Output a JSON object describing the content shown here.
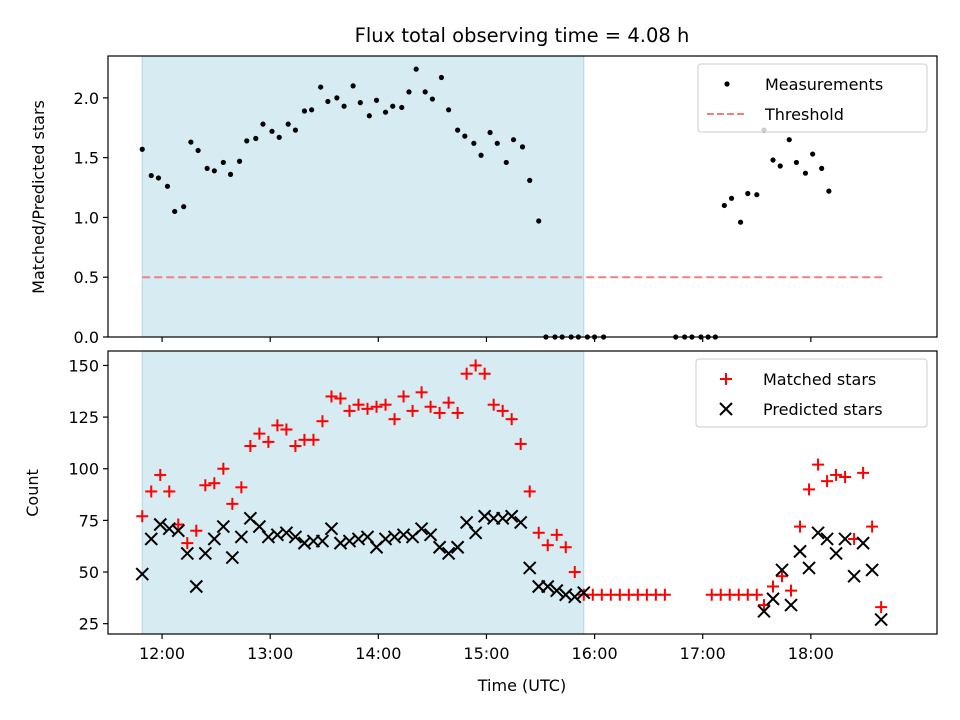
{
  "title": "Flux total observing time = 4.08 h",
  "colors": {
    "highlight": "#add8e6",
    "measurements": "#000000",
    "threshold": "#f08080",
    "matched": "#ff0000",
    "predicted": "#000000"
  },
  "chart_data": [
    {
      "type": "scatter",
      "panel": "top",
      "ylabel": "Matched/Predicted stars",
      "ylim": [
        0,
        2.35
      ],
      "y_ticks": [
        0.0,
        0.5,
        1.0,
        1.5,
        2.0
      ],
      "y_tick_labels": [
        "0.0",
        "0.5",
        "1.0",
        "1.5",
        "2.0"
      ],
      "xlim": [
        "11:30",
        "19:10"
      ],
      "x_tick_times": [
        "12:00",
        "13:00",
        "14:00",
        "15:00",
        "16:00",
        "17:00",
        "18:00"
      ],
      "highlight_span": [
        "11:49",
        "15:54"
      ],
      "legend_position": "top-right",
      "legend": [
        "Measurements",
        "Threshold"
      ],
      "threshold": {
        "name": "Threshold",
        "y": 0.5,
        "x_start": "11:49",
        "x_end": "18:40"
      },
      "series": [
        {
          "name": "Measurements",
          "marker": "dot",
          "points": [
            [
              "11:49",
              1.57
            ],
            [
              "11:54",
              1.35
            ],
            [
              "11:58",
              1.33
            ],
            [
              "12:03",
              1.26
            ],
            [
              "12:07",
              1.05
            ],
            [
              "12:12",
              1.09
            ],
            [
              "12:16",
              1.63
            ],
            [
              "12:20",
              1.56
            ],
            [
              "12:25",
              1.41
            ],
            [
              "12:29",
              1.39
            ],
            [
              "12:34",
              1.46
            ],
            [
              "12:38",
              1.36
            ],
            [
              "12:43",
              1.47
            ],
            [
              "12:47",
              1.64
            ],
            [
              "12:52",
              1.66
            ],
            [
              "12:56",
              1.78
            ],
            [
              "13:01",
              1.72
            ],
            [
              "13:05",
              1.67
            ],
            [
              "13:10",
              1.78
            ],
            [
              "13:14",
              1.73
            ],
            [
              "13:19",
              1.89
            ],
            [
              "13:23",
              1.9
            ],
            [
              "13:28",
              2.09
            ],
            [
              "13:32",
              1.97
            ],
            [
              "13:37",
              2.0
            ],
            [
              "13:41",
              1.93
            ],
            [
              "13:46",
              2.1
            ],
            [
              "13:50",
              1.96
            ],
            [
              "13:55",
              1.85
            ],
            [
              "13:59",
              1.98
            ],
            [
              "14:04",
              1.88
            ],
            [
              "14:08",
              1.93
            ],
            [
              "14:13",
              1.92
            ],
            [
              "14:17",
              2.05
            ],
            [
              "14:21",
              2.24
            ],
            [
              "14:26",
              2.05
            ],
            [
              "14:30",
              1.99
            ],
            [
              "14:35",
              2.17
            ],
            [
              "14:39",
              1.9
            ],
            [
              "14:44",
              1.73
            ],
            [
              "14:48",
              1.68
            ],
            [
              "14:53",
              1.62
            ],
            [
              "14:57",
              1.52
            ],
            [
              "15:02",
              1.71
            ],
            [
              "15:06",
              1.62
            ],
            [
              "15:11",
              1.46
            ],
            [
              "15:15",
              1.65
            ],
            [
              "15:20",
              1.59
            ],
            [
              "15:24",
              1.31
            ],
            [
              "15:29",
              0.97
            ],
            [
              "15:33",
              0.0
            ],
            [
              "15:38",
              0.0
            ],
            [
              "15:42",
              0.0
            ],
            [
              "15:47",
              0.0
            ],
            [
              "15:51",
              0.0
            ],
            [
              "15:56",
              0.0
            ],
            [
              "16:00",
              0.0
            ],
            [
              "16:05",
              0.0
            ],
            [
              "16:45",
              0.0
            ],
            [
              "16:50",
              0.0
            ],
            [
              "16:54",
              0.0
            ],
            [
              "16:59",
              0.0
            ],
            [
              "17:03",
              0.0
            ],
            [
              "17:07",
              0.0
            ],
            [
              "17:12",
              1.1
            ],
            [
              "17:16",
              1.16
            ],
            [
              "17:21",
              0.96
            ],
            [
              "17:25",
              1.2
            ],
            [
              "17:30",
              1.19
            ],
            [
              "17:34",
              1.73
            ],
            [
              "17:39",
              1.48
            ],
            [
              "17:43",
              1.43
            ],
            [
              "17:48",
              1.65
            ],
            [
              "17:52",
              1.46
            ],
            [
              "17:57",
              1.37
            ],
            [
              "18:01",
              1.53
            ],
            [
              "18:06",
              1.41
            ],
            [
              "18:10",
              1.22
            ]
          ]
        }
      ]
    },
    {
      "type": "scatter",
      "panel": "bottom",
      "xlabel": "Time (UTC)",
      "ylabel": "Count",
      "ylim": [
        20,
        157
      ],
      "y_ticks": [
        25,
        50,
        75,
        100,
        125,
        150
      ],
      "y_tick_labels": [
        "25",
        "50",
        "75",
        "100",
        "125",
        "150"
      ],
      "xlim": [
        "11:30",
        "19:10"
      ],
      "x_tick_times": [
        "12:00",
        "13:00",
        "14:00",
        "15:00",
        "16:00",
        "17:00",
        "18:00"
      ],
      "x_tick_labels": [
        "12:00",
        "13:00",
        "14:00",
        "15:00",
        "16:00",
        "17:00",
        "18:00"
      ],
      "highlight_span": [
        "11:49",
        "15:54"
      ],
      "legend_position": "top-right",
      "legend": [
        "Matched stars",
        "Predicted stars"
      ],
      "series": [
        {
          "name": "Matched stars",
          "marker": "plus",
          "points": [
            [
              "11:49",
              77
            ],
            [
              "11:54",
              89
            ],
            [
              "11:59",
              97
            ],
            [
              "12:04",
              89
            ],
            [
              "12:09",
              73
            ],
            [
              "12:14",
              64
            ],
            [
              "12:19",
              70
            ],
            [
              "12:24",
              92
            ],
            [
              "12:29",
              93
            ],
            [
              "12:34",
              100
            ],
            [
              "12:39",
              83
            ],
            [
              "12:44",
              91
            ],
            [
              "12:49",
              111
            ],
            [
              "12:54",
              117
            ],
            [
              "12:59",
              113
            ],
            [
              "13:04",
              121
            ],
            [
              "13:09",
              119
            ],
            [
              "13:14",
              111
            ],
            [
              "13:19",
              114
            ],
            [
              "13:24",
              114
            ],
            [
              "13:29",
              123
            ],
            [
              "13:34",
              135
            ],
            [
              "13:39",
              134
            ],
            [
              "13:44",
              128
            ],
            [
              "13:49",
              131
            ],
            [
              "13:54",
              129
            ],
            [
              "13:59",
              130
            ],
            [
              "14:04",
              131
            ],
            [
              "14:09",
              124
            ],
            [
              "14:14",
              135
            ],
            [
              "14:19",
              128
            ],
            [
              "14:24",
              137
            ],
            [
              "14:29",
              130
            ],
            [
              "14:34",
              127
            ],
            [
              "14:39",
              132
            ],
            [
              "14:44",
              127
            ],
            [
              "14:49",
              146
            ],
            [
              "14:54",
              150
            ],
            [
              "14:59",
              146
            ],
            [
              "15:04",
              131
            ],
            [
              "15:09",
              128
            ],
            [
              "15:14",
              124
            ],
            [
              "15:19",
              112
            ],
            [
              "15:24",
              89
            ],
            [
              "15:29",
              69
            ],
            [
              "15:34",
              63
            ],
            [
              "15:39",
              68
            ],
            [
              "15:44",
              62
            ],
            [
              "15:49",
              50
            ],
            [
              "15:54",
              39
            ],
            [
              "15:59",
              39
            ],
            [
              "16:04",
              39
            ],
            [
              "16:09",
              39
            ],
            [
              "16:14",
              39
            ],
            [
              "16:19",
              39
            ],
            [
              "16:24",
              39
            ],
            [
              "16:29",
              39
            ],
            [
              "16:34",
              39
            ],
            [
              "16:39",
              39
            ],
            [
              "17:05",
              39
            ],
            [
              "17:10",
              39
            ],
            [
              "17:15",
              39
            ],
            [
              "17:20",
              39
            ],
            [
              "17:25",
              39
            ],
            [
              "17:30",
              39
            ],
            [
              "17:34",
              34
            ],
            [
              "17:39",
              43
            ],
            [
              "17:44",
              48
            ],
            [
              "17:49",
              41
            ],
            [
              "17:54",
              72
            ],
            [
              "17:59",
              90
            ],
            [
              "18:04",
              102
            ],
            [
              "18:09",
              94
            ],
            [
              "18:14",
              97
            ],
            [
              "18:19",
              96
            ],
            [
              "18:24",
              66
            ],
            [
              "18:29",
              98
            ],
            [
              "18:34",
              72
            ],
            [
              "18:39",
              33
            ]
          ]
        },
        {
          "name": "Predicted stars",
          "marker": "x",
          "points": [
            [
              "11:49",
              49
            ],
            [
              "11:54",
              66
            ],
            [
              "11:59",
              73
            ],
            [
              "12:04",
              71
            ],
            [
              "12:09",
              70
            ],
            [
              "12:14",
              59
            ],
            [
              "12:19",
              43
            ],
            [
              "12:24",
              59
            ],
            [
              "12:29",
              66
            ],
            [
              "12:34",
              72
            ],
            [
              "12:39",
              57
            ],
            [
              "12:44",
              67
            ],
            [
              "12:49",
              76
            ],
            [
              "12:54",
              72
            ],
            [
              "12:59",
              67
            ],
            [
              "13:04",
              68
            ],
            [
              "13:09",
              69
            ],
            [
              "13:14",
              67
            ],
            [
              "13:19",
              64
            ],
            [
              "13:24",
              65
            ],
            [
              "13:29",
              65
            ],
            [
              "13:34",
              71
            ],
            [
              "13:39",
              64
            ],
            [
              "13:44",
              65
            ],
            [
              "13:49",
              66
            ],
            [
              "13:54",
              67
            ],
            [
              "13:59",
              62
            ],
            [
              "14:04",
              66
            ],
            [
              "14:09",
              67
            ],
            [
              "14:14",
              68
            ],
            [
              "14:19",
              67
            ],
            [
              "14:24",
              71
            ],
            [
              "14:29",
              68
            ],
            [
              "14:34",
              62
            ],
            [
              "14:39",
              59
            ],
            [
              "14:44",
              62
            ],
            [
              "14:49",
              74
            ],
            [
              "14:54",
              69
            ],
            [
              "14:59",
              77
            ],
            [
              "15:04",
              76
            ],
            [
              "15:09",
              76
            ],
            [
              "15:14",
              77
            ],
            [
              "15:19",
              74
            ],
            [
              "15:24",
              52
            ],
            [
              "15:29",
              43
            ],
            [
              "15:34",
              43
            ],
            [
              "15:39",
              41
            ],
            [
              "15:44",
              39
            ],
            [
              "15:49",
              38
            ],
            [
              "15:54",
              40
            ],
            [
              "17:34",
              31
            ],
            [
              "17:39",
              37
            ],
            [
              "17:44",
              51
            ],
            [
              "17:49",
              34
            ],
            [
              "17:54",
              60
            ],
            [
              "17:59",
              52
            ],
            [
              "18:04",
              69
            ],
            [
              "18:09",
              66
            ],
            [
              "18:14",
              59
            ],
            [
              "18:19",
              66
            ],
            [
              "18:24",
              48
            ],
            [
              "18:29",
              64
            ],
            [
              "18:34",
              51
            ],
            [
              "18:39",
              27
            ]
          ]
        }
      ]
    }
  ]
}
